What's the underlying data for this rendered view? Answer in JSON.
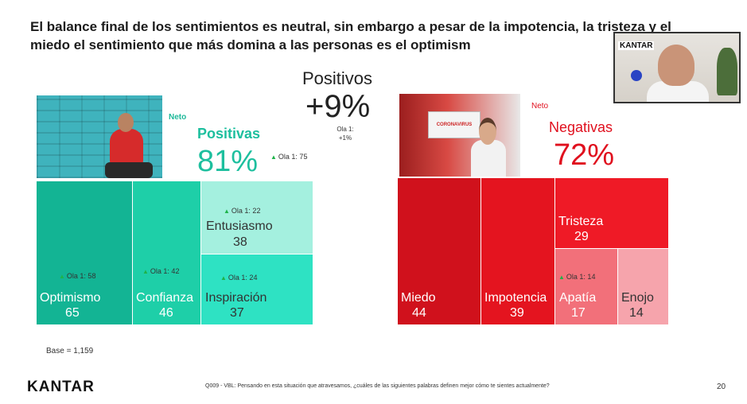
{
  "slide": {
    "headline": "El balance final de los sentimientos es neutral, sin embargo a pesar de la impotencia, la tristeza y el miedo el sentimiento que más domina a las personas es el optimism",
    "base": "Base = 1,159",
    "logo": "KANTAR",
    "footer": "Q009 - VBL: Pensando en esta situación que atravesamos, ¿cuáles de las siguientes palabras definen mejor cómo te sientes actualmente?",
    "page_number": "20"
  },
  "center": {
    "title": "Positivos",
    "value": "+9%",
    "ola_label": "Ola 1:",
    "ola_value": "+1%"
  },
  "positive": {
    "neto_label": "Neto",
    "title": "Positivas",
    "percent": "81%",
    "ola": "Ola 1: 75",
    "color": "#1dbf9e",
    "tiles": [
      {
        "name": "Optimismo",
        "value": "65",
        "ola": "Ola 1: 58",
        "color": "#13b494"
      },
      {
        "name": "Confianza",
        "value": "46",
        "ola": "Ola 1: 42",
        "color": "#1ecfa8"
      },
      {
        "name": "Entusiasmo",
        "value": "38",
        "ola": "Ola 1: 22",
        "color": "#a4f0df"
      },
      {
        "name": "Inspiración",
        "value": "37",
        "ola": "Ola 1: 24",
        "color": "#2ee2c3"
      }
    ]
  },
  "negative": {
    "neto_label": "Neto",
    "title": "Negativas",
    "percent": "72%",
    "color": "#e0101e",
    "tiles": [
      {
        "name": "Miedo",
        "value": "44",
        "color": "#d0111c"
      },
      {
        "name": "Impotencia",
        "value": "39",
        "color": "#e4141f"
      },
      {
        "name": "Tristeza",
        "value": "29",
        "color": "#ef1a26"
      },
      {
        "name": "Apatía",
        "value": "17",
        "ola": "Ola 1: 14",
        "color": "#f2707a"
      },
      {
        "name": "Enojo",
        "value": "14",
        "color": "#f6a4ac"
      }
    ]
  },
  "photo_left": {
    "icon": "man-red-sweater-photo"
  },
  "photo_right": {
    "sign_text": "CORONAVIRUS"
  },
  "video": {
    "logo": "KANTAR"
  },
  "icons": {
    "up": "▲"
  }
}
